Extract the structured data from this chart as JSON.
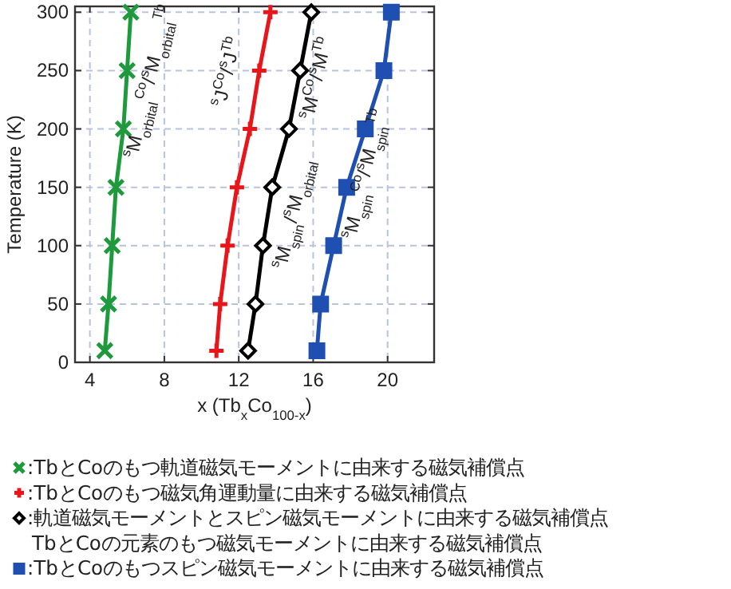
{
  "chart_data": {
    "type": "line",
    "xlabel": "x (Tb$_{x}$Co$_{100-x}$)",
    "ylabel": "Temperature (K)",
    "xlim": [
      3.2,
      22.5
    ],
    "ylim": [
      0,
      305
    ],
    "xticks": [
      4,
      8,
      12,
      16,
      20
    ],
    "yticks": [
      0,
      50,
      100,
      150,
      200,
      250,
      300
    ],
    "grid": true,
    "legend": "bottom",
    "series": [
      {
        "name": ":TbとCoのもつ軌道磁気モーメントに由来する磁気補償点",
        "color": "#1e9a3c",
        "marker": "cross",
        "x": [
          4.8,
          5.0,
          5.2,
          5.4,
          5.8,
          6.0,
          6.2
        ],
        "values": [
          10,
          50,
          100,
          150,
          200,
          250,
          300
        ]
      },
      {
        "name": ":TbとCoのもつ磁気角運動量に由来する磁気補償点",
        "color": "#e8161b",
        "marker": "plus",
        "x": [
          10.8,
          11.0,
          11.4,
          11.9,
          12.6,
          13.1,
          13.7
        ],
        "values": [
          10,
          50,
          100,
          150,
          200,
          250,
          300
        ]
      },
      {
        "name": " :軌道磁気モーメントとスピン磁気モーメントに由来する磁気補償点\nTbとCoの元素のもつ磁気モーメントに由来する磁気補償点",
        "color": "#000000",
        "marker": "diamond",
        "x": [
          12.5,
          12.9,
          13.3,
          13.8,
          14.7,
          15.3,
          15.9
        ],
        "values": [
          10,
          50,
          100,
          150,
          200,
          250,
          300
        ]
      },
      {
        "name": ":TbとCoのもつスピン磁気モーメントに由来する磁気補償点",
        "color": "#1f4fb0",
        "marker": "square",
        "x": [
          16.2,
          16.4,
          17.1,
          17.8,
          18.8,
          19.8,
          20.2
        ],
        "values": [
          10,
          50,
          100,
          150,
          200,
          250,
          300
        ]
      }
    ],
    "annotations": [
      "$^{s}$M$_{orbital}$$^{Co}$/$^{s}$M$_{orbital}$$^{Tb}$",
      "$^{s}$J$^{Co}$/$^{s}$J$^{Tb}$",
      "$^{s}$M$^{Co}$/$^{s}$M$^{Tb}$",
      "$^{s}$M$_{spin}$/$^{s}$M$_{orbital}$",
      "$^{s}$M$_{spin}$$^{Co}$/$^{s}$M$_{spin}$$^{Tb}$"
    ]
  }
}
